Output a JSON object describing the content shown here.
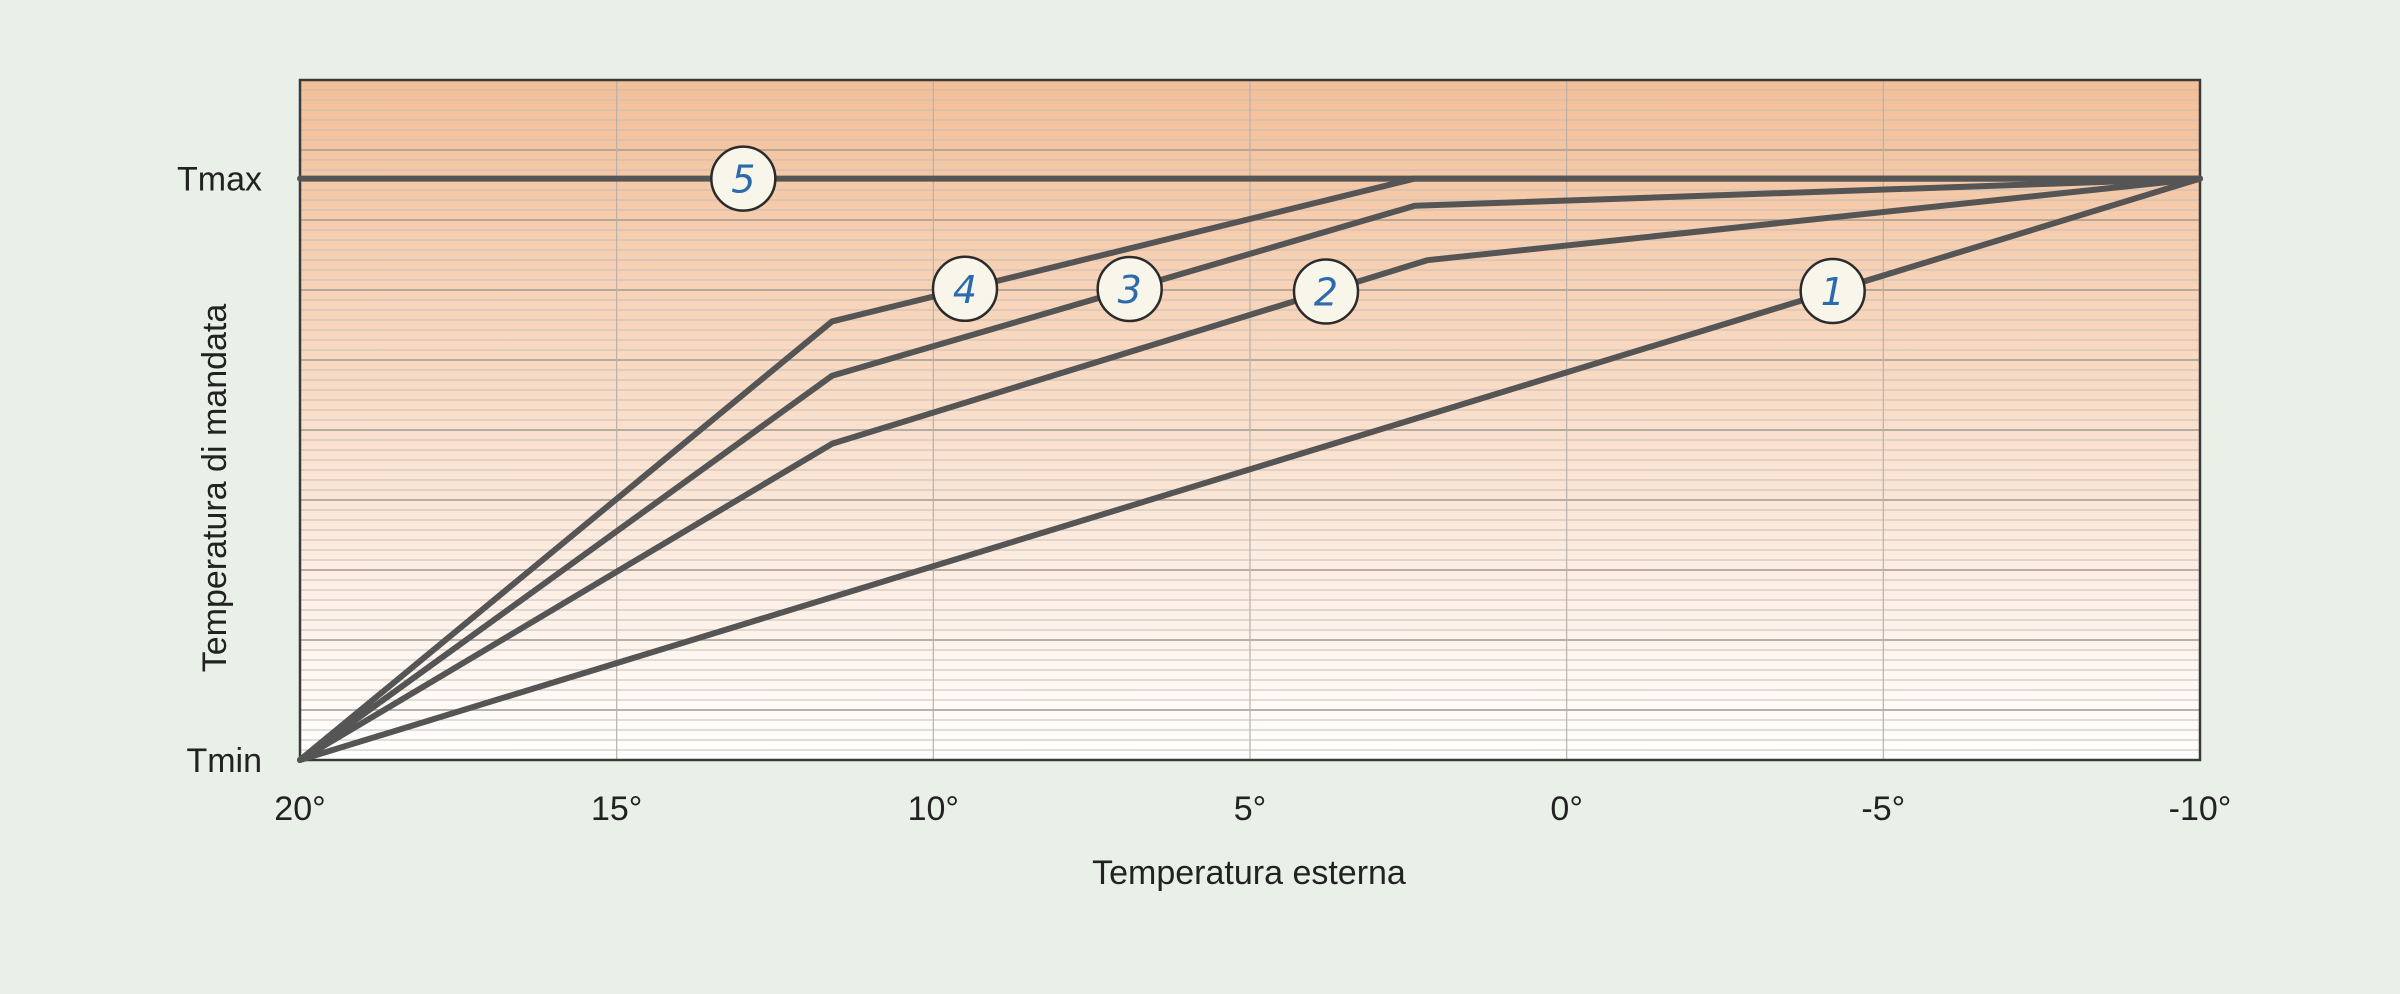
{
  "chart_data": {
    "type": "line",
    "xlabel": "Temperatura esterna",
    "ylabel": "Temperatura di mandata",
    "x_ticks": [
      20,
      15,
      10,
      5,
      0,
      -5,
      -10
    ],
    "x_tick_labels": [
      "20°",
      "15°",
      "10°",
      "5°",
      "0°",
      "-5°",
      "-10°"
    ],
    "xlim": [
      20,
      -10
    ],
    "ylim": [
      0,
      1
    ],
    "y_tick_labels": [
      {
        "label": "Tmax",
        "value": 0.855
      },
      {
        "label": "Tmin",
        "value": 0
      }
    ],
    "grid": true,
    "series": [
      {
        "label": "1",
        "points": [
          [
            20,
            0
          ],
          [
            -10,
            0.855
          ]
        ],
        "marker_x": -4.2
      },
      {
        "label": "2",
        "points": [
          [
            20,
            0
          ],
          [
            11.6,
            0.465
          ],
          [
            2.2,
            0.735
          ],
          [
            -10,
            0.855
          ]
        ],
        "marker_x": 3.8
      },
      {
        "label": "3",
        "points": [
          [
            20,
            0
          ],
          [
            11.6,
            0.565
          ],
          [
            2.4,
            0.815
          ],
          [
            -10,
            0.855
          ]
        ],
        "marker_x": 6.9
      },
      {
        "label": "4",
        "points": [
          [
            20,
            0
          ],
          [
            11.6,
            0.645
          ],
          [
            2.4,
            0.855
          ],
          [
            -10,
            0.855
          ]
        ],
        "marker_x": 9.5
      },
      {
        "label": "5",
        "points": [
          [
            20,
            0.855
          ],
          [
            -10,
            0.855
          ]
        ],
        "marker_x": 13.0
      }
    ],
    "colors": {
      "background": "#e9f0e8",
      "gradient_top": "#f3bf98",
      "gradient_bottom": "#ffffff",
      "line": "#555555",
      "marker_fill": "#f8f5ea",
      "marker_text": "#2a6aad",
      "frame": "#3a3a3a"
    }
  }
}
